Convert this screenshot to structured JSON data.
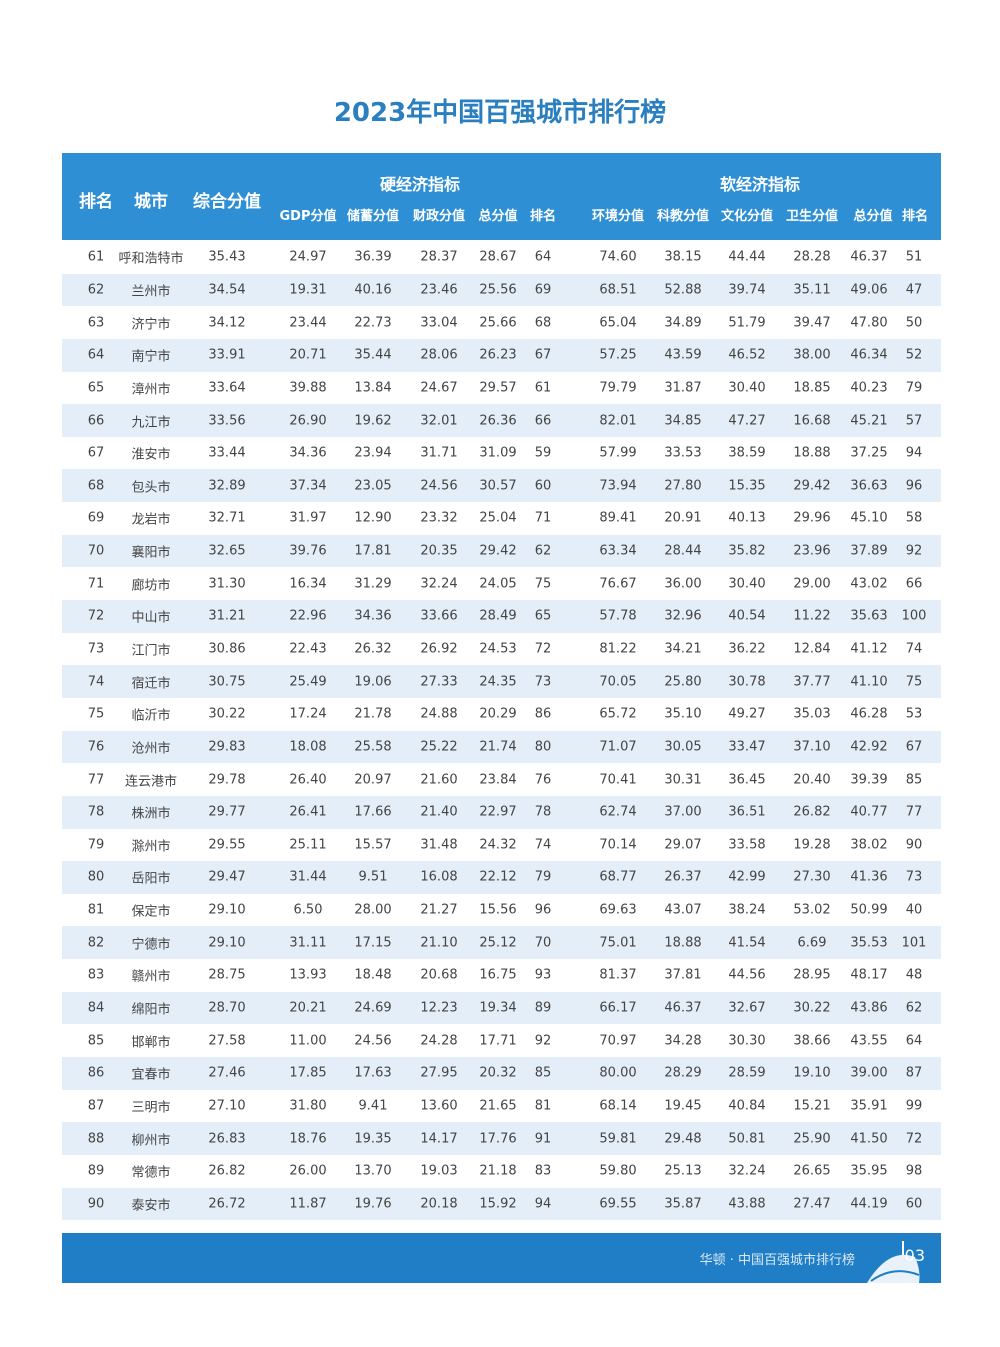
{
  "title": "2023年中国百强城市排行榜",
  "header": {
    "rank": "排名",
    "city": "城市",
    "composite": "综合分值",
    "hard_group": "硬经济指标",
    "soft_group": "软经济指标",
    "hard_cols": [
      "GDP分值",
      "储蓄分值",
      "财政分值",
      "总分值",
      "排名"
    ],
    "soft_cols": [
      "环境分值",
      "科教分值",
      "文化分值",
      "卫生分值",
      "总分值",
      "排名"
    ]
  },
  "rows": [
    [
      "61",
      "呼和浩特市",
      "35.43",
      "24.97",
      "36.39",
      "28.37",
      "28.67",
      "64",
      "74.60",
      "38.15",
      "44.44",
      "28.28",
      "46.37",
      "51"
    ],
    [
      "62",
      "兰州市",
      "34.54",
      "19.31",
      "40.16",
      "23.46",
      "25.56",
      "69",
      "68.51",
      "52.88",
      "39.74",
      "35.11",
      "49.06",
      "47"
    ],
    [
      "63",
      "济宁市",
      "34.12",
      "23.44",
      "22.73",
      "33.04",
      "25.66",
      "68",
      "65.04",
      "34.89",
      "51.79",
      "39.47",
      "47.80",
      "50"
    ],
    [
      "64",
      "南宁市",
      "33.91",
      "20.71",
      "35.44",
      "28.06",
      "26.23",
      "67",
      "57.25",
      "43.59",
      "46.52",
      "38.00",
      "46.34",
      "52"
    ],
    [
      "65",
      "漳州市",
      "33.64",
      "39.88",
      "13.84",
      "24.67",
      "29.57",
      "61",
      "79.79",
      "31.87",
      "30.40",
      "18.85",
      "40.23",
      "79"
    ],
    [
      "66",
      "九江市",
      "33.56",
      "26.90",
      "19.62",
      "32.01",
      "26.36",
      "66",
      "82.01",
      "34.85",
      "47.27",
      "16.68",
      "45.21",
      "57"
    ],
    [
      "67",
      "淮安市",
      "33.44",
      "34.36",
      "23.94",
      "31.71",
      "31.09",
      "59",
      "57.99",
      "33.53",
      "38.59",
      "18.88",
      "37.25",
      "94"
    ],
    [
      "68",
      "包头市",
      "32.89",
      "37.34",
      "23.05",
      "24.56",
      "30.57",
      "60",
      "73.94",
      "27.80",
      "15.35",
      "29.42",
      "36.63",
      "96"
    ],
    [
      "69",
      "龙岩市",
      "32.71",
      "31.97",
      "12.90",
      "23.32",
      "25.04",
      "71",
      "89.41",
      "20.91",
      "40.13",
      "29.96",
      "45.10",
      "58"
    ],
    [
      "70",
      "襄阳市",
      "32.65",
      "39.76",
      "17.81",
      "20.35",
      "29.42",
      "62",
      "63.34",
      "28.44",
      "35.82",
      "23.96",
      "37.89",
      "92"
    ],
    [
      "71",
      "廊坊市",
      "31.30",
      "16.34",
      "31.29",
      "32.24",
      "24.05",
      "75",
      "76.67",
      "36.00",
      "30.40",
      "29.00",
      "43.02",
      "66"
    ],
    [
      "72",
      "中山市",
      "31.21",
      "22.96",
      "34.36",
      "33.66",
      "28.49",
      "65",
      "57.78",
      "32.96",
      "40.54",
      "11.22",
      "35.63",
      "100"
    ],
    [
      "73",
      "江门市",
      "30.86",
      "22.43",
      "26.32",
      "26.92",
      "24.53",
      "72",
      "81.22",
      "34.21",
      "36.22",
      "12.84",
      "41.12",
      "74"
    ],
    [
      "74",
      "宿迁市",
      "30.75",
      "25.49",
      "19.06",
      "27.33",
      "24.35",
      "73",
      "70.05",
      "25.80",
      "30.78",
      "37.77",
      "41.10",
      "75"
    ],
    [
      "75",
      "临沂市",
      "30.22",
      "17.24",
      "21.78",
      "24.88",
      "20.29",
      "86",
      "65.72",
      "35.10",
      "49.27",
      "35.03",
      "46.28",
      "53"
    ],
    [
      "76",
      "沧州市",
      "29.83",
      "18.08",
      "25.58",
      "25.22",
      "21.74",
      "80",
      "71.07",
      "30.05",
      "33.47",
      "37.10",
      "42.92",
      "67"
    ],
    [
      "77",
      "连云港市",
      "29.78",
      "26.40",
      "20.97",
      "21.60",
      "23.84",
      "76",
      "70.41",
      "30.31",
      "36.45",
      "20.40",
      "39.39",
      "85"
    ],
    [
      "78",
      "株洲市",
      "29.77",
      "26.41",
      "17.66",
      "21.40",
      "22.97",
      "78",
      "62.74",
      "37.00",
      "36.51",
      "26.82",
      "40.77",
      "77"
    ],
    [
      "79",
      "滁州市",
      "29.55",
      "25.11",
      "15.57",
      "31.48",
      "24.32",
      "74",
      "70.14",
      "29.07",
      "33.58",
      "19.28",
      "38.02",
      "90"
    ],
    [
      "80",
      "岳阳市",
      "29.47",
      "31.44",
      "9.51",
      "16.08",
      "22.12",
      "79",
      "68.77",
      "26.37",
      "42.99",
      "27.30",
      "41.36",
      "73"
    ],
    [
      "81",
      "保定市",
      "29.10",
      "6.50",
      "28.00",
      "21.27",
      "15.56",
      "96",
      "69.63",
      "43.07",
      "38.24",
      "53.02",
      "50.99",
      "40"
    ],
    [
      "82",
      "宁德市",
      "29.10",
      "31.11",
      "17.15",
      "21.10",
      "25.12",
      "70",
      "75.01",
      "18.88",
      "41.54",
      "6.69",
      "35.53",
      "101"
    ],
    [
      "83",
      "赣州市",
      "28.75",
      "13.93",
      "18.48",
      "20.68",
      "16.75",
      "93",
      "81.37",
      "37.81",
      "44.56",
      "28.95",
      "48.17",
      "48"
    ],
    [
      "84",
      "绵阳市",
      "28.70",
      "20.21",
      "24.69",
      "12.23",
      "19.34",
      "89",
      "66.17",
      "46.37",
      "32.67",
      "30.22",
      "43.86",
      "62"
    ],
    [
      "85",
      "邯郸市",
      "27.58",
      "11.00",
      "24.56",
      "24.28",
      "17.71",
      "92",
      "70.97",
      "34.28",
      "30.30",
      "38.66",
      "43.55",
      "64"
    ],
    [
      "86",
      "宜春市",
      "27.46",
      "17.85",
      "17.63",
      "27.95",
      "20.32",
      "85",
      "80.00",
      "28.29",
      "28.59",
      "19.10",
      "39.00",
      "87"
    ],
    [
      "87",
      "三明市",
      "27.10",
      "31.80",
      "9.41",
      "13.60",
      "21.65",
      "81",
      "68.14",
      "19.45",
      "40.84",
      "15.21",
      "35.91",
      "99"
    ],
    [
      "88",
      "柳州市",
      "26.83",
      "18.76",
      "19.35",
      "14.17",
      "17.76",
      "91",
      "59.81",
      "29.48",
      "50.81",
      "25.90",
      "41.50",
      "72"
    ],
    [
      "89",
      "常德市",
      "26.82",
      "26.00",
      "13.70",
      "19.03",
      "21.18",
      "83",
      "59.80",
      "25.13",
      "32.24",
      "26.65",
      "35.95",
      "98"
    ],
    [
      "90",
      "泰安市",
      "26.72",
      "11.87",
      "19.76",
      "20.18",
      "15.92",
      "94",
      "69.55",
      "35.87",
      "43.88",
      "27.47",
      "44.19",
      "60"
    ]
  ],
  "footer": {
    "text": "华顿 · 中国百强城市排行榜",
    "page": "03"
  },
  "colors": {
    "title": "#2a7fc0",
    "header_bg": "#2f8fd4",
    "row_alt": "#e4eef8",
    "footer_bg": "#1f7ec6"
  }
}
